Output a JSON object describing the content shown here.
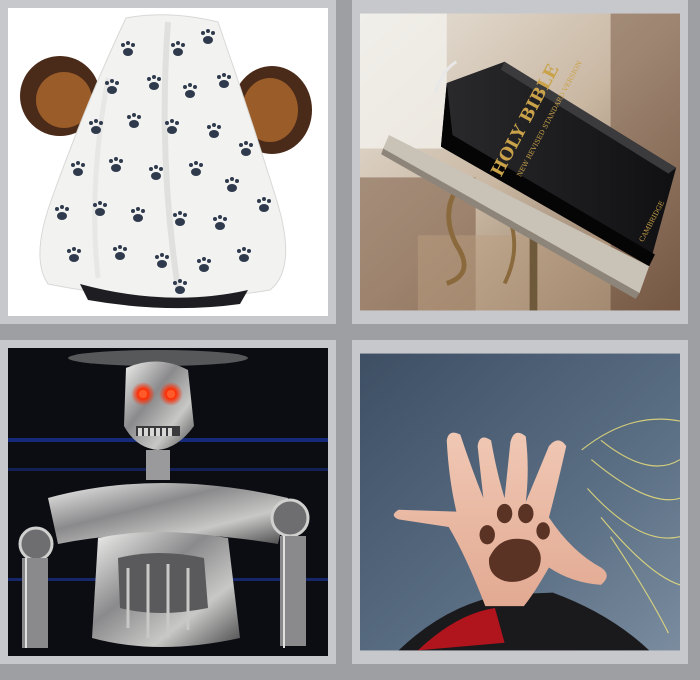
{
  "puzzle": {
    "tiles": [
      {
        "id": "tile-1",
        "subject": "paw-print-hat-with-bear-ears"
      },
      {
        "id": "tile-2",
        "subject": "bible-on-lectern",
        "printed_text": [
          "HOLY BIBLE",
          "NEW REVISED STANDARD VERSION",
          "CAMBRIDGE"
        ]
      },
      {
        "id": "tile-3",
        "subject": "robot-endoskeleton-red-eyes"
      },
      {
        "id": "tile-4",
        "subject": "hand-with-paw-print"
      }
    ]
  },
  "colors": {
    "frame": "#9d9fa3",
    "tile_border": "#c7c8cc",
    "paw": "#2f3a4d",
    "robot_eye": "#ff2a00"
  }
}
